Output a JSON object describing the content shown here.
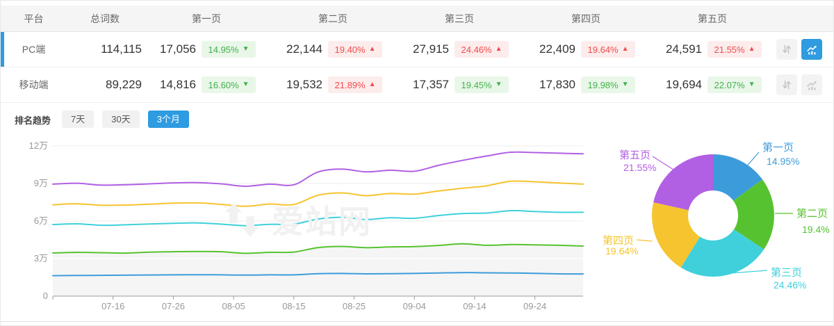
{
  "table": {
    "columns": [
      "平台",
      "总词数",
      "第一页",
      "第二页",
      "第三页",
      "第四页",
      "第五页"
    ],
    "rows": [
      {
        "platform": "PC端",
        "total": "114,115",
        "selected": true,
        "pages": [
          {
            "value": "17,056",
            "pct": "14.95%",
            "tone": "green",
            "arrow": "▼"
          },
          {
            "value": "22,144",
            "pct": "19.40%",
            "tone": "red",
            "arrow": "▲"
          },
          {
            "value": "27,915",
            "pct": "24.46%",
            "tone": "red",
            "arrow": "▲"
          },
          {
            "value": "22,409",
            "pct": "19.64%",
            "tone": "red",
            "arrow": "▲"
          },
          {
            "value": "24,591",
            "pct": "21.55%",
            "tone": "red",
            "arrow": "▲"
          }
        ],
        "trend_button_active": true
      },
      {
        "platform": "移动端",
        "total": "89,229",
        "selected": false,
        "pages": [
          {
            "value": "14,816",
            "pct": "16.60%",
            "tone": "green",
            "arrow": "▼"
          },
          {
            "value": "19,532",
            "pct": "21.89%",
            "tone": "red",
            "arrow": "▲"
          },
          {
            "value": "17,357",
            "pct": "19.45%",
            "tone": "green",
            "arrow": "▼"
          },
          {
            "value": "17,830",
            "pct": "19.98%",
            "tone": "green",
            "arrow": "▼"
          },
          {
            "value": "19,694",
            "pct": "22.07%",
            "tone": "green",
            "arrow": "▼"
          }
        ],
        "trend_button_active": false
      }
    ],
    "row_action_icons": [
      "updown-arrows-icon",
      "trend-chart-icon"
    ]
  },
  "trend": {
    "title": "排名趋势",
    "ranges": [
      "7天",
      "30天",
      "3个月"
    ],
    "active_range": "3个月"
  },
  "watermark": {
    "text": "爱站网"
  },
  "colors": {
    "accent_blue": "#2F9BE0",
    "badge_green": "#41B14A",
    "badge_red": "#F04B4B",
    "series_blue": "#3C9CDB",
    "series_green": "#57C22F",
    "series_cyan": "#3FD0DB",
    "series_yellow": "#F6C42F",
    "series_purple": "#B15FE3"
  },
  "chart_data": [
    {
      "type": "line",
      "title": "排名趋势 (3个月, PC端, 累计词数)",
      "x_ticks": [
        "07-16",
        "07-26",
        "08-05",
        "08-15",
        "08-25",
        "09-04",
        "09-14",
        "09-24"
      ],
      "x_tick_days": [
        10,
        20,
        30,
        40,
        50,
        60,
        70,
        80
      ],
      "x_range_days": [
        0,
        88
      ],
      "y_ticks": [
        "0",
        "3万",
        "6万",
        "9万",
        "12万"
      ],
      "ylim_wan": [
        0,
        12
      ],
      "grid": true,
      "days": [
        0,
        4,
        8,
        12,
        16,
        20,
        24,
        28,
        32,
        36,
        40,
        44,
        48,
        52,
        56,
        60,
        64,
        68,
        72,
        76,
        80,
        84,
        88
      ],
      "series": [
        {
          "name": "第五页",
          "color": "#B15FE3",
          "values_wan": [
            8.95,
            9.02,
            8.87,
            8.9,
            8.97,
            9.05,
            9.07,
            8.97,
            8.78,
            8.95,
            8.9,
            9.92,
            10.15,
            9.93,
            10.06,
            9.98,
            10.45,
            10.85,
            11.2,
            11.5,
            11.47,
            11.42,
            11.38
          ]
        },
        {
          "name": "第四页",
          "color": "#F6C42F",
          "values_wan": [
            7.3,
            7.38,
            7.26,
            7.28,
            7.35,
            7.43,
            7.45,
            7.33,
            7.18,
            7.36,
            7.32,
            8.06,
            8.25,
            8.03,
            8.2,
            8.15,
            8.4,
            8.62,
            8.82,
            9.18,
            9.14,
            9.04,
            8.95
          ]
        },
        {
          "name": "第三页",
          "color": "#3FD0DB",
          "values_wan": [
            5.72,
            5.78,
            5.66,
            5.7,
            5.76,
            5.82,
            5.85,
            5.75,
            5.63,
            5.74,
            5.75,
            6.16,
            6.3,
            6.12,
            6.26,
            6.22,
            6.44,
            6.6,
            6.64,
            6.83,
            6.76,
            6.7,
            6.7
          ]
        },
        {
          "name": "第二页",
          "color": "#57C22F",
          "area": true,
          "values_wan": [
            3.45,
            3.5,
            3.47,
            3.44,
            3.51,
            3.55,
            3.57,
            3.55,
            3.42,
            3.5,
            3.52,
            3.88,
            3.97,
            3.87,
            3.93,
            3.96,
            4.05,
            4.18,
            4.06,
            4.12,
            4.1,
            4.06,
            4.0
          ]
        },
        {
          "name": "第一页",
          "color": "#3C9CDB",
          "values_wan": [
            1.63,
            1.65,
            1.66,
            1.67,
            1.69,
            1.7,
            1.71,
            1.7,
            1.68,
            1.7,
            1.7,
            1.79,
            1.81,
            1.78,
            1.79,
            1.81,
            1.85,
            1.88,
            1.86,
            1.85,
            1.82,
            1.78,
            1.77
          ]
        }
      ]
    },
    {
      "type": "pie",
      "donut": true,
      "start_angle_deg": 0,
      "segments": [
        {
          "label": "第一页",
          "value_pct": 14.95,
          "pct_label": "14.95%",
          "color": "#3C9CDB"
        },
        {
          "label": "第二页",
          "value_pct": 19.4,
          "pct_label": "19.4%",
          "color": "#57C22F"
        },
        {
          "label": "第三页",
          "value_pct": 24.46,
          "pct_label": "24.46%",
          "color": "#3FD0DB"
        },
        {
          "label": "第四页",
          "value_pct": 19.64,
          "pct_label": "19.64%",
          "color": "#F6C42F"
        },
        {
          "label": "第五页",
          "value_pct": 21.55,
          "pct_label": "21.55%",
          "color": "#B15FE3"
        }
      ]
    }
  ]
}
